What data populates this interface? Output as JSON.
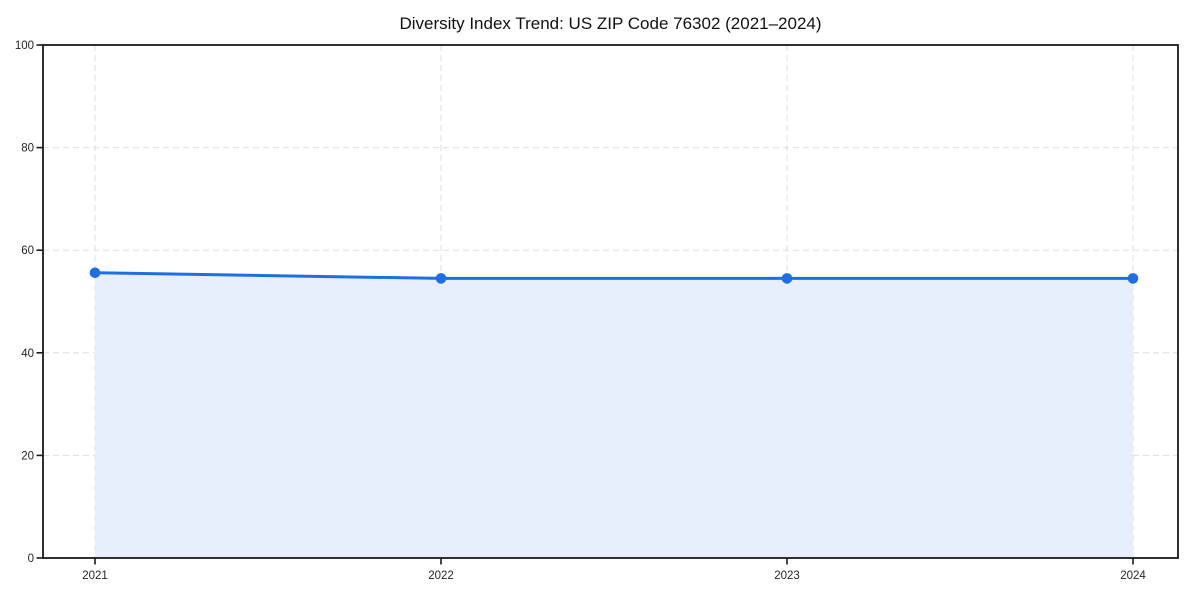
{
  "figure": {
    "background": "#ffffff"
  },
  "chart_data": {
    "type": "area",
    "title": "Diversity Index Trend: US ZIP Code 76302 (2021–2024)",
    "categories": [
      "2021",
      "2022",
      "2023",
      "2024"
    ],
    "series": [
      {
        "name": "Diversity Index",
        "values": [
          55.6,
          54.5,
          54.5,
          54.5
        ]
      }
    ],
    "xlabel": "",
    "ylabel": "",
    "ylim": [
      0,
      100
    ],
    "yticks": [
      0,
      20,
      40,
      60,
      80,
      100
    ],
    "grid": true,
    "grid_style": "dashed",
    "legend_position": "none",
    "marker": "circle",
    "colors": {
      "line": "#1f6fe0",
      "marker": "#1f6fe0",
      "fill": "#e8effc",
      "grid": "#dedede",
      "spine": "#1a1a1a",
      "tick_label": "#262626",
      "title": "#111111",
      "background": "#ffffff"
    }
  }
}
